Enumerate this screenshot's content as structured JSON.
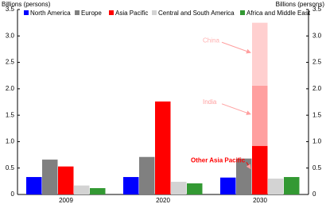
{
  "chart_data": {
    "type": "bar",
    "y_label": "Billions (persons)",
    "y2_label": "Billions (persons)",
    "categories": [
      "2009",
      "2020",
      "2030"
    ],
    "series": [
      {
        "name": "North America",
        "color": "#0000ff",
        "values": [
          0.33,
          0.33,
          0.32
        ]
      },
      {
        "name": "Europe",
        "color": "#808080",
        "values": [
          0.66,
          0.71,
          0.68
        ]
      },
      {
        "name": "Asia Pacific",
        "color": "#ff0000",
        "values": [
          0.53,
          1.76,
          null
        ]
      },
      {
        "name": "Central and South America",
        "color": "#d3d3d3",
        "values": [
          0.17,
          0.24,
          0.3
        ]
      },
      {
        "name": "Africa and Middle East",
        "color": "#339933",
        "values": [
          0.12,
          0.21,
          0.33
        ]
      }
    ],
    "breakdown": {
      "series": "Asia Pacific",
      "category": "2030",
      "segments": [
        {
          "name": "Other Asia Pacific",
          "color": "#ff0000",
          "value": 0.92
        },
        {
          "name": "India",
          "color": "#ff9f9f",
          "value": 1.14
        },
        {
          "name": "China",
          "color": "#ffcfcf",
          "value": 1.19
        }
      ]
    },
    "ylim": [
      0,
      3.5
    ],
    "yticks": [
      0,
      0.5,
      {
        "value": 1,
        "label": "1.0"
      },
      1.5,
      {
        "value": 2,
        "label": "2.0"
      },
      2.5,
      {
        "value": 3,
        "label": "3.0"
      },
      3.5
    ],
    "y2lim": [
      0,
      3.5
    ],
    "y2ticks": [
      0,
      0.5,
      {
        "value": 1,
        "label": "1.0"
      },
      1.5,
      {
        "value": 2,
        "label": "2.0"
      },
      2.5,
      {
        "value": 3,
        "label": "3.0"
      },
      3.5
    ],
    "grid": false
  }
}
